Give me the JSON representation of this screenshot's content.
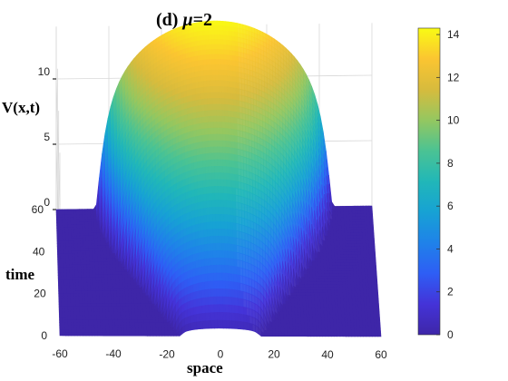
{
  "chart_data": {
    "type": "surface",
    "title": {
      "prefix": "(d) ",
      "symbol": "μ",
      "suffix": "=2"
    },
    "xlabel": "space",
    "ylabel": "time",
    "zlabel": "V(x,t)",
    "xlim": [
      -60,
      60
    ],
    "ylim": [
      0,
      60
    ],
    "zlim": [
      0,
      14
    ],
    "xticks": [
      -60,
      -40,
      -20,
      0,
      20,
      40,
      60
    ],
    "yticks": [
      0,
      20,
      40,
      60
    ],
    "zticks": [
      0,
      5,
      10
    ],
    "colorbar": {
      "ticks": [
        0,
        2,
        4,
        6,
        8,
        10,
        12,
        14
      ],
      "range": [
        0,
        14.3
      ],
      "colormap": "parula"
    },
    "surface_profiles": {
      "time": [
        0,
        5,
        10,
        15,
        20,
        25,
        30,
        35,
        40,
        45,
        50,
        55,
        60
      ],
      "half_width": [
        15,
        18,
        21,
        24,
        27,
        30,
        33,
        36,
        39,
        41,
        43,
        44,
        45
      ],
      "peak_value": [
        0.6,
        2.2,
        3.8,
        5.2,
        6.6,
        7.9,
        9.1,
        10.2,
        11.2,
        12.2,
        13.0,
        13.7,
        14.3
      ],
      "grid": true
    }
  }
}
